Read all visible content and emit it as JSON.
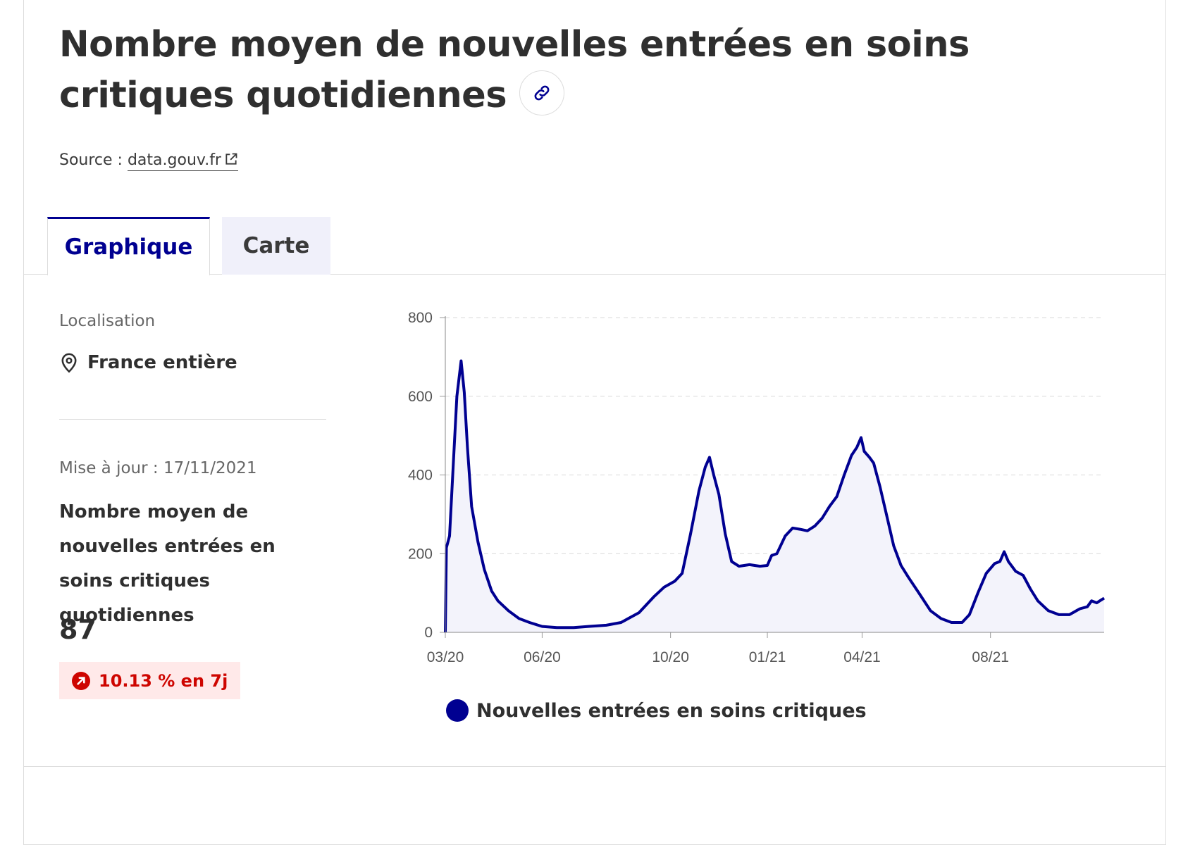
{
  "header": {
    "title": "Nombre moyen de nouvelles entrées en soins critiques quotidiennes",
    "source_prefix": "Source :",
    "source_link": "data.gouv.fr"
  },
  "tabs": [
    {
      "label": "Graphique",
      "active": true
    },
    {
      "label": "Carte",
      "active": false
    }
  ],
  "side": {
    "location_label": "Localisation",
    "location_value": "France entière",
    "update": "Mise à jour : 17/11/2021",
    "indicator_title": "Nombre moyen de nouvelles entrées en soins critiques quotidiennes",
    "indicator_value": "87",
    "trend": "10.13 % en 7j"
  },
  "colors": {
    "accent": "#000091",
    "fill": "#f3f3fb",
    "trend": "#ce0500",
    "trend_bg": "#ffe9e9"
  },
  "icons": {
    "link": "link-icon",
    "external": "external-link-icon",
    "pin": "map-pin-icon",
    "trend": "arrow-up-right-icon"
  },
  "chart_data": {
    "type": "area",
    "series": [
      {
        "name": "Nouvelles entrées en soins critiques",
        "color": "#000091"
      }
    ],
    "x_ticks": [
      "03/20",
      "06/20",
      "10/20",
      "01/21",
      "04/21",
      "08/21"
    ],
    "y_ticks": [
      "0",
      "200",
      "400",
      "600",
      "800"
    ],
    "ylim": [
      0,
      800
    ],
    "grid": true,
    "legend_position": "bottom",
    "points": [
      {
        "x": "2020-03-01",
        "y": 0
      },
      {
        "x": "2020-03-02",
        "y": 215
      },
      {
        "x": "2020-03-05",
        "y": 245
      },
      {
        "x": "2020-03-08",
        "y": 400
      },
      {
        "x": "2020-03-12",
        "y": 600
      },
      {
        "x": "2020-03-16",
        "y": 690
      },
      {
        "x": "2020-03-19",
        "y": 610
      },
      {
        "x": "2020-03-22",
        "y": 470
      },
      {
        "x": "2020-03-26",
        "y": 320
      },
      {
        "x": "2020-04-01",
        "y": 230
      },
      {
        "x": "2020-04-07",
        "y": 160
      },
      {
        "x": "2020-04-14",
        "y": 105
      },
      {
        "x": "2020-04-20",
        "y": 80
      },
      {
        "x": "2020-04-30",
        "y": 55
      },
      {
        "x": "2020-05-10",
        "y": 35
      },
      {
        "x": "2020-05-20",
        "y": 25
      },
      {
        "x": "2020-06-01",
        "y": 15
      },
      {
        "x": "2020-06-15",
        "y": 12
      },
      {
        "x": "2020-07-01",
        "y": 12
      },
      {
        "x": "2020-07-15",
        "y": 15
      },
      {
        "x": "2020-08-01",
        "y": 18
      },
      {
        "x": "2020-08-15",
        "y": 25
      },
      {
        "x": "2020-09-01",
        "y": 50
      },
      {
        "x": "2020-09-15",
        "y": 90
      },
      {
        "x": "2020-09-25",
        "y": 115
      },
      {
        "x": "2020-10-05",
        "y": 130
      },
      {
        "x": "2020-10-12",
        "y": 150
      },
      {
        "x": "2020-10-20",
        "y": 250
      },
      {
        "x": "2020-10-28",
        "y": 360
      },
      {
        "x": "2020-11-03",
        "y": 420
      },
      {
        "x": "2020-11-07",
        "y": 445
      },
      {
        "x": "2020-11-11",
        "y": 400
      },
      {
        "x": "2020-11-16",
        "y": 350
      },
      {
        "x": "2020-11-22",
        "y": 250
      },
      {
        "x": "2020-11-28",
        "y": 180
      },
      {
        "x": "2020-12-05",
        "y": 168
      },
      {
        "x": "2020-12-15",
        "y": 172
      },
      {
        "x": "2020-12-25",
        "y": 168
      },
      {
        "x": "2021-01-01",
        "y": 170
      },
      {
        "x": "2021-01-05",
        "y": 195
      },
      {
        "x": "2021-01-10",
        "y": 200
      },
      {
        "x": "2021-01-18",
        "y": 245
      },
      {
        "x": "2021-01-25",
        "y": 265
      },
      {
        "x": "2021-02-01",
        "y": 262
      },
      {
        "x": "2021-02-08",
        "y": 258
      },
      {
        "x": "2021-02-15",
        "y": 270
      },
      {
        "x": "2021-02-22",
        "y": 290
      },
      {
        "x": "2021-03-01",
        "y": 320
      },
      {
        "x": "2021-03-08",
        "y": 345
      },
      {
        "x": "2021-03-15",
        "y": 400
      },
      {
        "x": "2021-03-22",
        "y": 450
      },
      {
        "x": "2021-03-27",
        "y": 470
      },
      {
        "x": "2021-03-31",
        "y": 495
      },
      {
        "x": "2021-04-03",
        "y": 460
      },
      {
        "x": "2021-04-08",
        "y": 445
      },
      {
        "x": "2021-04-12",
        "y": 430
      },
      {
        "x": "2021-04-18",
        "y": 370
      },
      {
        "x": "2021-04-25",
        "y": 290
      },
      {
        "x": "2021-05-01",
        "y": 220
      },
      {
        "x": "2021-05-08",
        "y": 170
      },
      {
        "x": "2021-05-15",
        "y": 140
      },
      {
        "x": "2021-05-25",
        "y": 100
      },
      {
        "x": "2021-06-05",
        "y": 55
      },
      {
        "x": "2021-06-15",
        "y": 35
      },
      {
        "x": "2021-06-25",
        "y": 25
      },
      {
        "x": "2021-07-05",
        "y": 25
      },
      {
        "x": "2021-07-12",
        "y": 45
      },
      {
        "x": "2021-07-20",
        "y": 100
      },
      {
        "x": "2021-07-28",
        "y": 150
      },
      {
        "x": "2021-08-05",
        "y": 175
      },
      {
        "x": "2021-08-10",
        "y": 180
      },
      {
        "x": "2021-08-14",
        "y": 205
      },
      {
        "x": "2021-08-18",
        "y": 180
      },
      {
        "x": "2021-08-25",
        "y": 155
      },
      {
        "x": "2021-09-01",
        "y": 145
      },
      {
        "x": "2021-09-08",
        "y": 110
      },
      {
        "x": "2021-09-15",
        "y": 80
      },
      {
        "x": "2021-09-25",
        "y": 55
      },
      {
        "x": "2021-10-05",
        "y": 45
      },
      {
        "x": "2021-10-15",
        "y": 45
      },
      {
        "x": "2021-10-25",
        "y": 60
      },
      {
        "x": "2021-11-01",
        "y": 65
      },
      {
        "x": "2021-11-05",
        "y": 80
      },
      {
        "x": "2021-11-10",
        "y": 75
      },
      {
        "x": "2021-11-14",
        "y": 82
      },
      {
        "x": "2021-11-17",
        "y": 87
      }
    ]
  }
}
